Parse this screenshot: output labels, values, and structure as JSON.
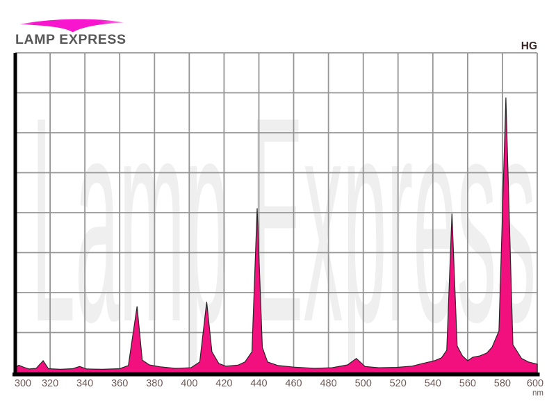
{
  "logo": {
    "text": "LAMP EXPRESS"
  },
  "header": {
    "lamp_type_label": "HG"
  },
  "chart": {
    "watermark": "Lamp Express",
    "colors": {
      "spectrum_fill": "#F2107E",
      "spectrum_stroke": "#262626",
      "grid": "#969696",
      "axis": "#000000",
      "tick_text": "#6E5A57",
      "lamp_label_text": "#3B2725",
      "watermark_text": "#EFEFEF",
      "logo_pink": "#F716CE",
      "logo_pink_light": "#FB90E7",
      "logo_text": "#585858"
    }
  },
  "chart_data": {
    "type": "area",
    "series_name": "HG",
    "xlabel": "nm",
    "ylabel": "",
    "xlim": [
      300,
      600
    ],
    "ylim": [
      0,
      100
    ],
    "x_ticks": [
      300,
      320,
      340,
      360,
      380,
      400,
      420,
      440,
      460,
      480,
      500,
      520,
      540,
      560,
      580,
      600
    ],
    "grid": true,
    "grid_rows": 8,
    "legend": "none",
    "series": [
      {
        "name": "HG",
        "points": [
          [
            300,
            1.5
          ],
          [
            302,
            2.3
          ],
          [
            305,
            1.6
          ],
          [
            308,
            1.1
          ],
          [
            312,
            1.3
          ],
          [
            316,
            3.7
          ],
          [
            319,
            1.2
          ],
          [
            326,
            1.0
          ],
          [
            333,
            1.2
          ],
          [
            337,
            1.9
          ],
          [
            341,
            1.1
          ],
          [
            350,
            1.0
          ],
          [
            360,
            1.2
          ],
          [
            365,
            2.2
          ],
          [
            370,
            20.7
          ],
          [
            373,
            3.9
          ],
          [
            377,
            2.4
          ],
          [
            383,
            1.8
          ],
          [
            392,
            1.3
          ],
          [
            401,
            1.5
          ],
          [
            406,
            3.3
          ],
          [
            410,
            22.1
          ],
          [
            413,
            6.5
          ],
          [
            417,
            2.8
          ],
          [
            421,
            2.0
          ],
          [
            428,
            2.3
          ],
          [
            432,
            3.3
          ],
          [
            436,
            6.5
          ],
          [
            439,
            51.4
          ],
          [
            442,
            7.8
          ],
          [
            445,
            3.3
          ],
          [
            451,
            2.2
          ],
          [
            460,
            1.7
          ],
          [
            472,
            1.3
          ],
          [
            482,
            1.5
          ],
          [
            491,
            2.4
          ],
          [
            496,
            4.4
          ],
          [
            501,
            1.9
          ],
          [
            509,
            1.5
          ],
          [
            519,
            1.6
          ],
          [
            528,
            2.0
          ],
          [
            534,
            2.8
          ],
          [
            541,
            3.7
          ],
          [
            545,
            4.6
          ],
          [
            548,
            7.0
          ],
          [
            551,
            49.7
          ],
          [
            554,
            8.3
          ],
          [
            557,
            5.2
          ],
          [
            560,
            3.7
          ],
          [
            563,
            4.8
          ],
          [
            567,
            5.2
          ],
          [
            571,
            6.1
          ],
          [
            574,
            7.9
          ],
          [
            578,
            13.0
          ],
          [
            582,
            86.0
          ],
          [
            586,
            8.7
          ],
          [
            591,
            4.4
          ],
          [
            595,
            3.3
          ],
          [
            600,
            2.6
          ]
        ],
        "peaks": [
          {
            "nm": 302,
            "intensity": 2.3
          },
          {
            "nm": 316,
            "intensity": 3.7
          },
          {
            "nm": 337,
            "intensity": 1.9
          },
          {
            "nm": 370,
            "intensity": 20.7
          },
          {
            "nm": 410,
            "intensity": 22.1
          },
          {
            "nm": 439,
            "intensity": 51.4
          },
          {
            "nm": 496,
            "intensity": 4.4
          },
          {
            "nm": 551,
            "intensity": 49.7
          },
          {
            "nm": 582,
            "intensity": 86.0
          }
        ]
      }
    ]
  }
}
